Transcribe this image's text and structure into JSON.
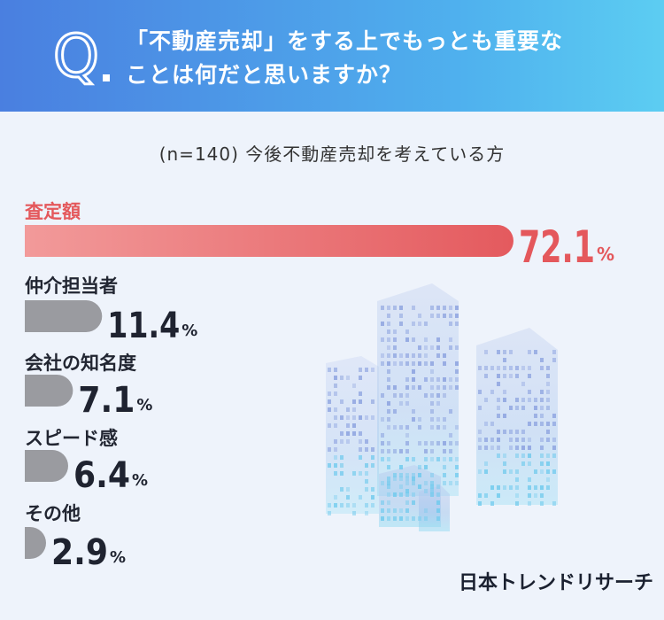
{
  "header": {
    "q_letter": "Q",
    "question_line1": "「不動産売却」をする上でもっとも重要な",
    "question_line2": "ことは何だと思いますか？"
  },
  "subtitle": "(n=140) 今後不動産売却を考えている方",
  "logo_text": "日本トレンドリサーチ",
  "colors": {
    "top_bar_start": "#f29a9a",
    "top_bar_end": "#e45a5e",
    "top_text": "#e4585c",
    "other_bar": "#9a9ba0",
    "other_text": "#1f2330"
  },
  "chart_data": {
    "type": "bar",
    "orientation": "horizontal",
    "title": "「不動産売却」をする上でもっとも重要なことは何だと思いますか？",
    "subtitle": "(n=140) 今後不動産売却を考えている方",
    "unit": "%",
    "categories": [
      "査定額",
      "仲介担当者",
      "会社の知名度",
      "スピード感",
      "その他"
    ],
    "values": [
      72.1,
      11.4,
      7.1,
      6.4,
      2.9
    ],
    "value_labels": [
      "72.1",
      "11.4",
      "7.1",
      "6.4",
      "2.9"
    ],
    "xlim": [
      0,
      80
    ]
  }
}
